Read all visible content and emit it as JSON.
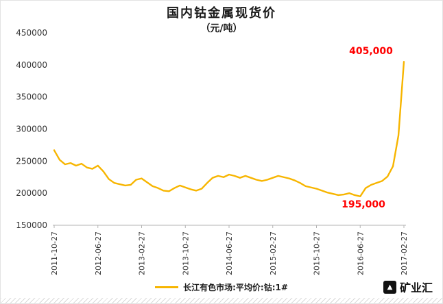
{
  "header": {
    "title": "国内钴金属现货价",
    "subtitle": "（元/吨）"
  },
  "chart_data": {
    "type": "line",
    "title": "国内钴金属现货价",
    "subtitle": "（元/吨）",
    "unit": "元/吨",
    "ylim": [
      150000,
      450000
    ],
    "y_ticks": [
      150000,
      200000,
      250000,
      300000,
      350000,
      400000,
      450000
    ],
    "x_start": "2011-10-27",
    "x_interval": "monthly",
    "x_tick_labels": [
      "2011-10-27",
      "2012-06-27",
      "2013-02-27",
      "2013-10-27",
      "2014-06-27",
      "2015-02-27",
      "2015-10-27",
      "2016-06-27",
      "2017-02-27"
    ],
    "x_tick_indices": [
      0,
      8,
      16,
      24,
      32,
      40,
      48,
      56,
      64
    ],
    "grid": false,
    "legend_position": "bottom",
    "series": [
      {
        "name": "长江有色市场:平均价:钴:1#",
        "color": "#f7b500",
        "values": [
          267000,
          252000,
          245000,
          247000,
          243000,
          246000,
          240000,
          238000,
          243000,
          234000,
          222000,
          216000,
          214000,
          212000,
          213000,
          221000,
          223000,
          217000,
          211000,
          208000,
          204000,
          203000,
          208000,
          212000,
          209000,
          206000,
          204000,
          207000,
          216000,
          224000,
          227000,
          225000,
          229000,
          227000,
          224000,
          227000,
          224000,
          221000,
          219000,
          221000,
          224000,
          227000,
          225000,
          223000,
          220000,
          216000,
          211000,
          209000,
          207000,
          204000,
          201000,
          199000,
          197000,
          198000,
          200000,
          197000,
          195000,
          208000,
          213000,
          216000,
          219000,
          226000,
          242000,
          290000,
          405000
        ]
      }
    ],
    "annotations": [
      {
        "text": "405,000",
        "value": 405000,
        "x_index": 64
      },
      {
        "text": "195,000",
        "value": 195000,
        "x_index": 56
      }
    ]
  },
  "legend": {
    "label": "长江有色市场:平均价:钴:1#"
  },
  "footer": {
    "brand": "矿业汇"
  },
  "colors": {
    "line": "#f7b500",
    "annotation": "#ff0000",
    "axis": "#b3b3b3",
    "axis_text": "#333333",
    "title_text": "#1a1a1a"
  }
}
